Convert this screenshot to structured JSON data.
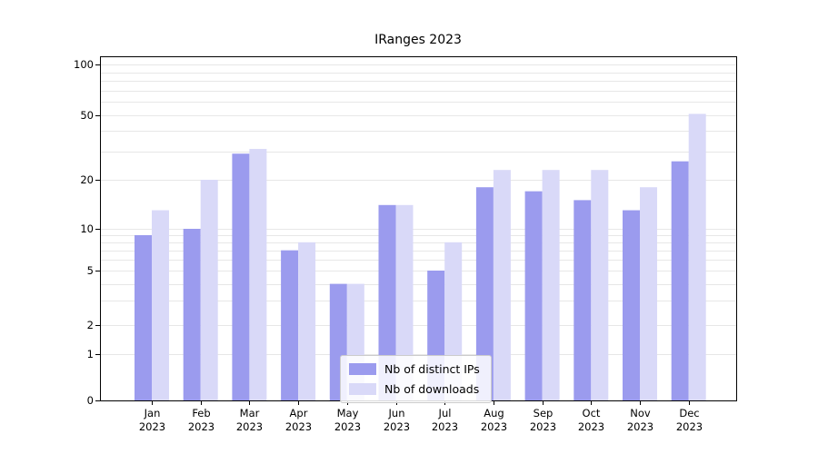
{
  "chart_data": {
    "type": "bar",
    "title": "IRanges 2023",
    "year": "2023",
    "months": [
      "Jan",
      "Feb",
      "Mar",
      "Apr",
      "May",
      "Jun",
      "Jul",
      "Aug",
      "Sep",
      "Oct",
      "Nov",
      "Dec"
    ],
    "categories": [
      "Jan 2023",
      "Feb 2023",
      "Mar 2023",
      "Apr 2023",
      "May 2023",
      "Jun 2023",
      "Jul 2023",
      "Aug 2023",
      "Sep 2023",
      "Oct 2023",
      "Nov 2023",
      "Dec 2023"
    ],
    "series": [
      {
        "name": "Nb of distinct IPs",
        "color": "#9b9bee",
        "values": [
          9,
          10,
          29,
          7,
          4,
          14,
          5,
          18,
          17,
          15,
          13,
          26
        ]
      },
      {
        "name": "Nb of downloads",
        "color": "#d9d9f8",
        "values": [
          13,
          20,
          31,
          8,
          4,
          14,
          8,
          23,
          23,
          23,
          18,
          51
        ]
      }
    ],
    "yscale": "symlog",
    "ylim": [
      0,
      100
    ],
    "yticks": [
      0,
      1,
      2,
      5,
      10,
      20,
      50,
      100
    ],
    "grid_minor_values": [
      1,
      2,
      3,
      4,
      5,
      6,
      7,
      8,
      9,
      10,
      20,
      30,
      40,
      50,
      60,
      70,
      80,
      90,
      100
    ],
    "legend_position": "lower center",
    "xlabel": "",
    "ylabel": ""
  }
}
